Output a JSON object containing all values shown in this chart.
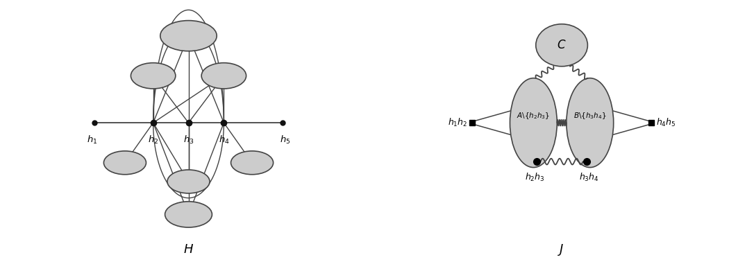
{
  "fig_width": 10.86,
  "fig_height": 3.78,
  "bg_color": "#ffffff",
  "ellipse_color": "#cccccc",
  "ellipse_edge": "#444444",
  "node_color": "#111111",
  "line_color": "#444444",
  "label_H": "H",
  "label_J": "J"
}
